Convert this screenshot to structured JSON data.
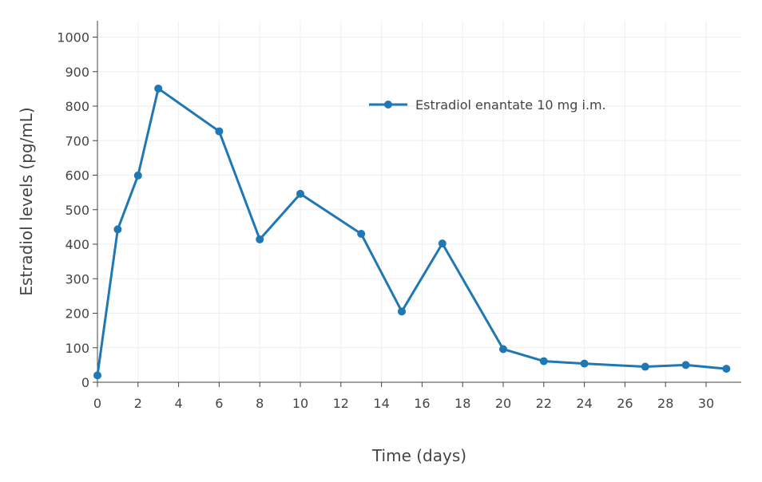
{
  "chart_data": {
    "type": "line",
    "title": "",
    "xlabel": "Time (days)",
    "ylabel": "Estradiol levels (pg/mL)",
    "xlim": [
      0,
      32
    ],
    "ylim": [
      0,
      1050
    ],
    "x_ticks": [
      0,
      2,
      4,
      6,
      8,
      10,
      12,
      14,
      16,
      18,
      20,
      22,
      24,
      26,
      28,
      30
    ],
    "y_ticks": [
      0,
      100,
      200,
      300,
      400,
      500,
      600,
      700,
      800,
      900,
      1000
    ],
    "grid": true,
    "legend_position": "top-right",
    "series": [
      {
        "name": "Estradiol enantate 10 mg i.m.",
        "color": "#1f77b4",
        "x": [
          0,
          1,
          2,
          3,
          6,
          8,
          10,
          13,
          15,
          17,
          20,
          22,
          24,
          27,
          29,
          31
        ],
        "y": [
          20,
          443,
          599,
          851,
          727,
          414,
          546,
          430,
          205,
          402,
          96,
          61,
          54,
          45,
          50,
          39
        ]
      }
    ]
  }
}
